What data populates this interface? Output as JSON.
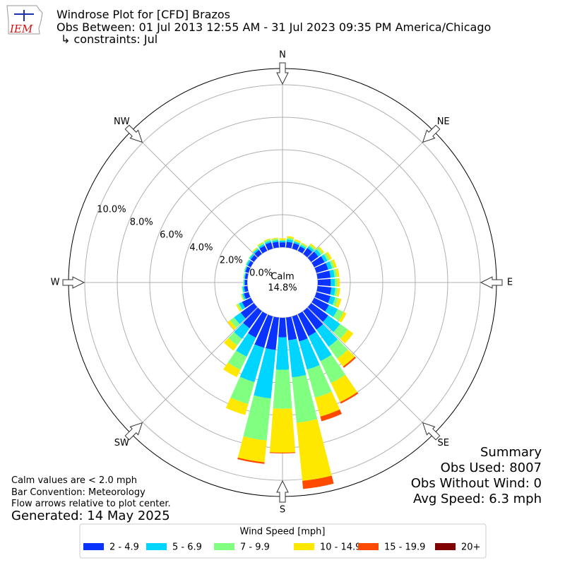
{
  "chart_data": {
    "type": "windrose",
    "logo": "IEM",
    "title": "Windrose Plot for [CFD] Brazos",
    "subtitle": "Obs Between: 01 Jul 2013 12:55 AM - 31 Jul 2023 09:35 PM America/Chicago",
    "constraints": "↳ constraints: Jul",
    "x": [
      0,
      10,
      20,
      30,
      40,
      50,
      60,
      70,
      80,
      90,
      100,
      110,
      120,
      130,
      140,
      150,
      160,
      170,
      180,
      190,
      200,
      210,
      220,
      230,
      240,
      250,
      260,
      270,
      280,
      290,
      300,
      310,
      320,
      330,
      340,
      350
    ],
    "xticks": [
      {
        "value": 0,
        "label": "N"
      },
      {
        "value": 45,
        "label": "NE"
      },
      {
        "value": 90,
        "label": "E"
      },
      {
        "value": 135,
        "label": "SE"
      },
      {
        "value": 180,
        "label": "S"
      },
      {
        "value": 225,
        "label": "SW"
      },
      {
        "value": 270,
        "label": "W"
      },
      {
        "value": 315,
        "label": "NW"
      }
    ],
    "ylim": [
      0,
      11
    ],
    "yticks": [
      {
        "value": 0,
        "label": "0.0%"
      },
      {
        "value": 2,
        "label": "2.0%"
      },
      {
        "value": 4,
        "label": "4.0%"
      },
      {
        "value": 6,
        "label": "6.0%"
      },
      {
        "value": 8,
        "label": "8.0%"
      },
      {
        "value": 10,
        "label": "10.0%"
      }
    ],
    "grid": true,
    "calm": {
      "label": "Calm",
      "value": 14.8,
      "value_label": "14.8%"
    },
    "legend_title": "Wind Speed [mph]",
    "series": [
      {
        "name": "2 - 4.9",
        "color": "#0a33ff",
        "values": [
          0.3,
          0.35,
          0.35,
          0.3,
          0.45,
          0.55,
          0.7,
          0.75,
          0.8,
          0.8,
          0.85,
          0.9,
          1.0,
          1.3,
          1.4,
          1.5,
          1.6,
          1.4,
          1.2,
          2.0,
          2.0,
          1.6,
          1.3,
          1.0,
          0.6,
          0.3,
          0.2,
          0.15,
          0.15,
          0.2,
          0.2,
          0.25,
          0.3,
          0.35,
          0.4,
          0.35
        ]
      },
      {
        "name": "5 - 6.9",
        "color": "#00d5ff",
        "values": [
          0.1,
          0.15,
          0.1,
          0.1,
          0.15,
          0.2,
          0.2,
          0.25,
          0.25,
          0.25,
          0.25,
          0.3,
          0.6,
          0.9,
          1.3,
          1.7,
          1.8,
          2.3,
          2.0,
          3.0,
          2.2,
          1.3,
          0.8,
          0.5,
          0.2,
          0.1,
          0.1,
          0.05,
          0.05,
          0.05,
          0.1,
          0.1,
          0.1,
          0.1,
          0.1,
          0.1
        ]
      },
      {
        "name": "7 - 9.9",
        "color": "#80ff80",
        "values": [
          0.05,
          0.1,
          0.05,
          0.1,
          0.1,
          0.15,
          0.15,
          0.15,
          0.15,
          0.15,
          0.15,
          0.2,
          0.4,
          0.6,
          0.9,
          1.5,
          1.8,
          2.8,
          2.4,
          2.6,
          1.4,
          0.9,
          0.5,
          0.3,
          0.1,
          0.05,
          0.05,
          0.05,
          0.05,
          0.05,
          0.05,
          0.05,
          0.05,
          0.1,
          0.1,
          0.1
        ]
      },
      {
        "name": "10 - 14.9",
        "color": "#ffe800",
        "values": [
          0.1,
          0.1,
          0.1,
          0.05,
          0.1,
          0.1,
          0.15,
          0.15,
          0.15,
          0.15,
          0.15,
          0.2,
          0.2,
          0.4,
          0.6,
          1.3,
          1.2,
          3.6,
          2.7,
          1.35,
          0.7,
          0.5,
          0.4,
          0.2,
          0.1,
          0.05,
          0,
          0,
          0,
          0,
          0,
          0,
          0.05,
          0.05,
          0.05,
          0.05
        ]
      },
      {
        "name": "15 - 19.9",
        "color": "#ff4a00",
        "values": [
          0,
          0,
          0,
          0,
          0,
          0,
          0,
          0,
          0,
          0,
          0,
          0,
          0,
          0,
          0.1,
          0.1,
          0.3,
          0.5,
          0.05,
          0.1,
          0,
          0,
          0,
          0,
          0,
          0,
          0,
          0,
          0,
          0,
          0,
          0,
          0,
          0,
          0,
          0
        ]
      },
      {
        "name": "20+",
        "color": "#800000",
        "values": [
          0,
          0,
          0,
          0,
          0,
          0,
          0,
          0,
          0,
          0,
          0,
          0,
          0,
          0,
          0,
          0,
          0,
          0,
          0,
          0,
          0,
          0,
          0,
          0,
          0,
          0,
          0,
          0,
          0,
          0,
          0,
          0,
          0,
          0,
          0,
          0
        ]
      }
    ],
    "notes": [
      "Calm values are < 2.0 mph",
      "Bar Convention: Meteorology",
      "Flow arrows relative to plot center."
    ],
    "generated": "Generated: 14 May 2025",
    "summary": [
      "Summary",
      "Obs Used: 8007",
      "Obs Without Wind: 0",
      "Avg Speed: 6.3 mph"
    ]
  }
}
